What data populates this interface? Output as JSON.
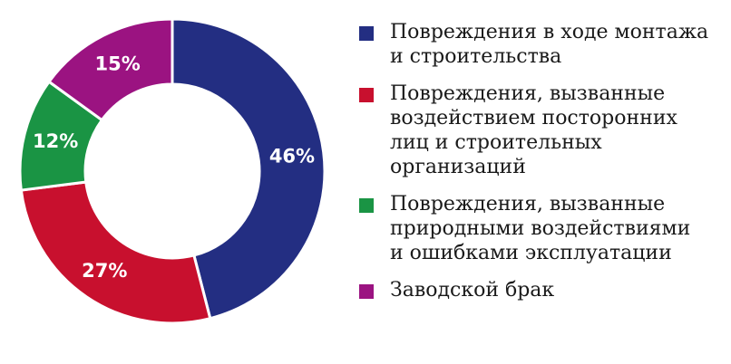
{
  "chart_data": {
    "type": "pie",
    "donut": true,
    "categories": [
      "Повреждения в ходе монтажа и строительства",
      "Повреждения, вызванные воздействием посторонних лиц и строительных организаций",
      "Повреждения, вызванные природными воздействиями и ошибками эксплуатации",
      "Заводской брак"
    ],
    "legend_lines": [
      [
        "Повреждения в ходе монтажа",
        "и строительства"
      ],
      [
        "Повреждения, вызванные",
        "воздействием посторонних",
        "лиц и строительных",
        "организаций"
      ],
      [
        "Повреждения, вызванные",
        "природными воздействиями",
        "и ошибками эксплуатации"
      ],
      [
        "Заводской брак"
      ]
    ],
    "values": [
      46,
      27,
      12,
      15
    ],
    "labels": [
      "46%",
      "27%",
      "12%",
      "15%"
    ],
    "colors": [
      "#232e82",
      "#c8102e",
      "#1a9444",
      "#9b1381"
    ],
    "title": "",
    "legend_position": "right"
  }
}
